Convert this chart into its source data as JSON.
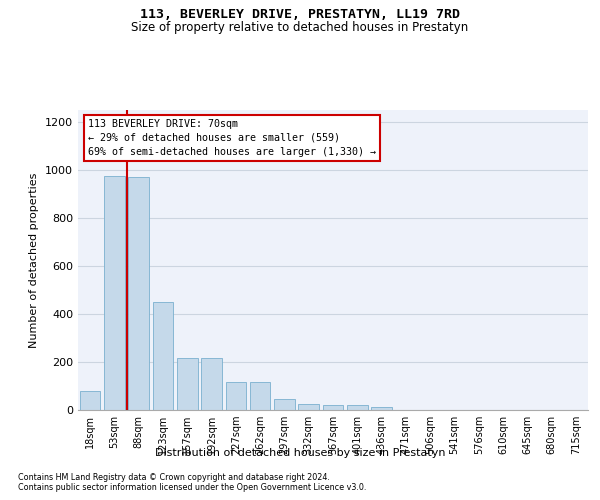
{
  "title": "113, BEVERLEY DRIVE, PRESTATYN, LL19 7RD",
  "subtitle": "Size of property relative to detached houses in Prestatyn",
  "xlabel": "Distribution of detached houses by size in Prestatyn",
  "ylabel": "Number of detached properties",
  "bar_labels": [
    "18sqm",
    "53sqm",
    "88sqm",
    "123sqm",
    "157sqm",
    "192sqm",
    "227sqm",
    "262sqm",
    "297sqm",
    "332sqm",
    "367sqm",
    "401sqm",
    "436sqm",
    "471sqm",
    "506sqm",
    "541sqm",
    "576sqm",
    "610sqm",
    "645sqm",
    "680sqm",
    "715sqm"
  ],
  "bar_values": [
    80,
    975,
    970,
    450,
    215,
    215,
    115,
    115,
    45,
    25,
    22,
    20,
    12,
    0,
    0,
    0,
    0,
    0,
    0,
    0,
    0
  ],
  "bar_color": "#c5d9ea",
  "bar_edge_color": "#7ab0cf",
  "red_line_x": 1.5,
  "annotation_text_line1": "113 BEVERLEY DRIVE: 70sqm",
  "annotation_text_line2": "← 29% of detached houses are smaller (559)",
  "annotation_text_line3": "69% of semi-detached houses are larger (1,330) →",
  "annotation_box_facecolor": "#ffffff",
  "annotation_box_edgecolor": "#cc0000",
  "red_line_color": "#cc0000",
  "ylim": [
    0,
    1250
  ],
  "yticks": [
    0,
    200,
    400,
    600,
    800,
    1000,
    1200
  ],
  "grid_color": "#ccd5e0",
  "bg_color": "#eef2fa",
  "footer_line1": "Contains HM Land Registry data © Crown copyright and database right 2024.",
  "footer_line2": "Contains public sector information licensed under the Open Government Licence v3.0."
}
